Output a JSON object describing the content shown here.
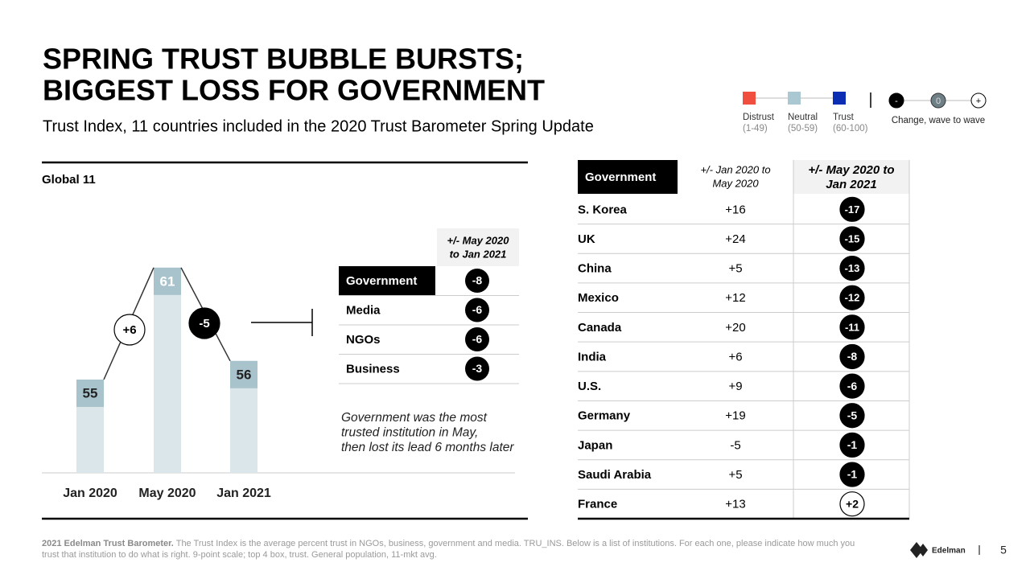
{
  "header": {
    "title_lines": [
      "SPRING TRUST BUBBLE BURSTS;",
      "BIGGEST LOSS FOR GOVERNMENT"
    ],
    "subtitle": "Trust Index, 11 countries included in the 2020 Trust Barometer Spring Update"
  },
  "legend": {
    "items": [
      {
        "label": "Distrust",
        "range": "(1-49)",
        "color": "#f04e3e"
      },
      {
        "label": "Neutral",
        "range": "(50-59)",
        "color": "#aac8d2"
      },
      {
        "label": "Trust",
        "range": "(60-100)",
        "color": "#0a2db3"
      }
    ],
    "change_symbols": [
      "-",
      "0",
      "+"
    ],
    "change_label": "Change, wave to wave"
  },
  "global": {
    "label": "Global 11",
    "waves": [
      {
        "label": "Jan 2020",
        "value": 55
      },
      {
        "label": "May 2020",
        "value": 61
      },
      {
        "label": "Jan 2021",
        "value": 56
      }
    ],
    "changes": [
      "+6",
      "-5"
    ],
    "table": {
      "header_lines": [
        "+/- May 2020",
        "to Jan 2021"
      ],
      "rows": [
        [
          "Government",
          "-8"
        ],
        [
          "Media",
          "-6"
        ],
        [
          "NGOs",
          "-6"
        ],
        [
          "Business",
          "-3"
        ]
      ]
    },
    "note_lines": [
      "Government was the most",
      "trusted institution in May,",
      "then lost its lead 6 months later"
    ]
  },
  "country_table": {
    "header_name": "Government",
    "header_col1_lines": [
      "+/- Jan 2020 to",
      "May 2020"
    ],
    "header_col2_lines": [
      "+/- May 2020 to",
      "Jan 2021"
    ],
    "rows": [
      [
        "S. Korea",
        "+16",
        "-17"
      ],
      [
        "UK",
        "+24",
        "-15"
      ],
      [
        "China",
        "+5",
        "-13"
      ],
      [
        "Mexico",
        "+12",
        "-12"
      ],
      [
        "Canada",
        "+20",
        "-11"
      ],
      [
        "India",
        "+6",
        "-8"
      ],
      [
        "U.S.",
        "+9",
        "-6"
      ],
      [
        "Germany",
        "+19",
        "-5"
      ],
      [
        "Japan",
        "-5",
        "-1"
      ],
      [
        "Saudi Arabia",
        "+5",
        "-1"
      ],
      [
        "France",
        "+13",
        "+2"
      ]
    ]
  },
  "footer": {
    "source_bold": "2021 Edelman Trust Barometer.",
    "source": "The Trust Index is the average percent trust in NGOs, business, government and media. TRU_INS. Below is a list of institutions. For each one, please indicate how much you trust that institution to do what is right. 9-point scale; top 4 box, trust. General population, 11-mkt avg.",
    "logo": "Edelman",
    "page": "5"
  }
}
